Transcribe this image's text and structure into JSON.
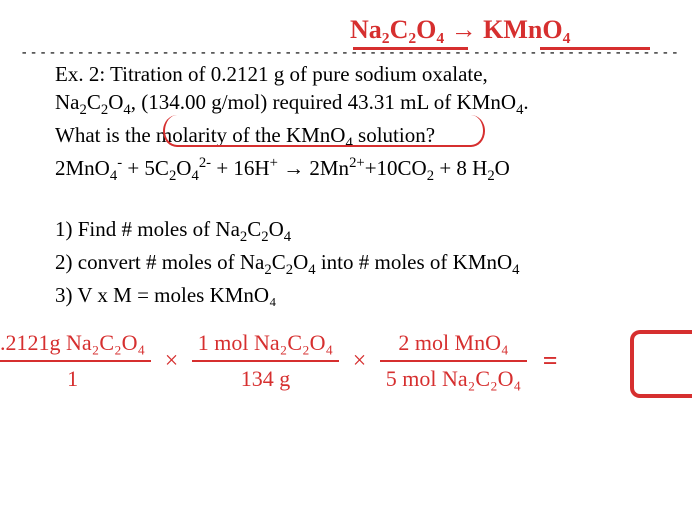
{
  "colors": {
    "handwriting": "#d62f2f",
    "text": "#000000",
    "background": "#ffffff"
  },
  "handTop": {
    "left": "Na₂C₂O₄",
    "arrow": "→",
    "right": "KMnO₄"
  },
  "dashline": "-----------------------------------------------------------------------------------",
  "problem": {
    "line1a": "Ex. 2:  Titration of 0.2121 g of pure sodium oxalate,",
    "line2a": "Na",
    "line2b": "C",
    "line2c": "O",
    "line2d": ", (134.00 g/mol) required 43.31 mL of KMnO",
    "line2e": ".",
    "line3a": "What is the molarity of the KMnO",
    "line3b": " solution?",
    "eqn": "2MnO₄⁻ + 5C₂O₄²⁻ + 16H⁺ → 2Mn²⁺+10CO₂ + 8 H₂O"
  },
  "steps": {
    "s1": "1) Find # moles of Na₂C₂O₄",
    "s2": "2) convert # moles of Na₂C₂O₄ into # moles of KMnO₄",
    "s3": "3) V x M = moles KMnO₄"
  },
  "calc": {
    "f1_num": ".2121g Na₂C₂O₄",
    "f1_den": "1",
    "times": "×",
    "f2_num": "1 mol Na₂C₂O₄",
    "f2_den": "134 g",
    "f3_num": "2 mol MnO₄",
    "f3_den": "5 mol Na₂C₂O₄",
    "equals": "="
  }
}
